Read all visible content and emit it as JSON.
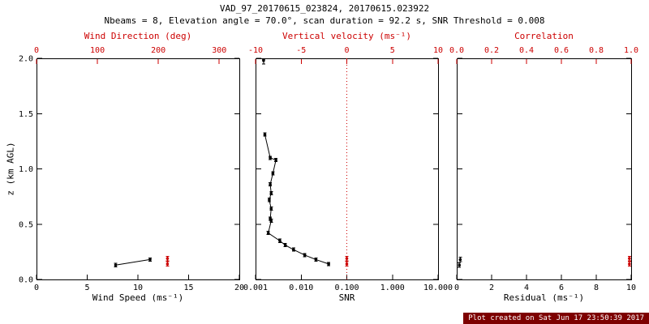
{
  "header": {
    "title": "VAD_97_20170615_023824, 20170615.023922",
    "subtitle": "Nbeams = 8, Elevation angle = 70.0°, scan duration = 92.2 s, SNR Threshold = 0.008"
  },
  "footer": {
    "created": "Plot created on Sat Jun 17 23:50:39 2017"
  },
  "colors": {
    "accent_red": "#cc0000",
    "black": "#000000",
    "footer_bg": "#7d0000"
  },
  "chart_data": [
    {
      "type": "scatter",
      "name": "wind-panel",
      "y_axis": {
        "label": "z (km AGL)",
        "range": [
          0,
          2
        ],
        "ticks": [
          0,
          0.5,
          1,
          1.5,
          2
        ],
        "tick_labels": [
          "0.0",
          "0.5",
          "1.0",
          "1.5",
          "2.0"
        ],
        "show_labels": true
      },
      "bottom_axis": {
        "label": "Wind Speed (ms⁻¹)",
        "range": [
          0,
          20
        ],
        "ticks": [
          0,
          5,
          10,
          15,
          20
        ],
        "tick_labels": [
          "0",
          "5",
          "10",
          "15",
          "20"
        ]
      },
      "top_axis": {
        "label": "Wind Direction (deg)",
        "range": [
          0,
          333
        ],
        "ticks": [
          0,
          100,
          200,
          300
        ],
        "tick_labels": [
          "0",
          "100",
          "200",
          "300"
        ]
      },
      "series": [
        {
          "name": "wind-speed",
          "color": "#000000",
          "line": true,
          "yerr": 0.015,
          "points": [
            [
              7.8,
              0.13
            ],
            [
              11.2,
              0.18
            ]
          ]
        },
        {
          "name": "wind-direction",
          "color": "#cc0000",
          "axis": "top",
          "line": false,
          "yerr": 0.02,
          "points": [
            [
              215,
              0.14
            ],
            [
              215,
              0.19
            ]
          ]
        }
      ]
    },
    {
      "type": "scatter",
      "name": "snr-panel",
      "y_axis": {
        "range": [
          0,
          2
        ],
        "ticks": [
          0,
          0.5,
          1,
          1.5,
          2
        ],
        "show_labels": false
      },
      "bottom_axis": {
        "label": "SNR",
        "range": [
          0.001,
          10
        ],
        "scale": "log",
        "ticks": [
          0.001,
          0.01,
          0.1,
          1,
          10
        ],
        "tick_labels": [
          "0.001",
          "0.010",
          "0.100",
          "1.000",
          "10.000"
        ]
      },
      "top_axis": {
        "label": "Vertical velocity (ms⁻¹)",
        "range": [
          -10,
          10
        ],
        "ticks": [
          -10,
          -5,
          0,
          5,
          10
        ],
        "tick_labels": [
          "-10",
          "-5",
          "0",
          "5",
          "10"
        ]
      },
      "ref_line": {
        "axis": "top",
        "value": 0,
        "color": "#cc0000",
        "dash": "1,3"
      },
      "series": [
        {
          "name": "snr-profile",
          "color": "#000000",
          "line": true,
          "yerr": 0.015,
          "points": [
            [
              0.0016,
              1.31
            ],
            [
              0.0021,
              1.1
            ],
            [
              0.0028,
              1.08
            ],
            [
              0.0024,
              0.96
            ],
            [
              0.0021,
              0.86
            ],
            [
              0.0022,
              0.78
            ],
            [
              0.002,
              0.72
            ],
            [
              0.0022,
              0.64
            ],
            [
              0.0021,
              0.55
            ],
            [
              0.0022,
              0.53
            ],
            [
              0.0019,
              0.42
            ],
            [
              0.0034,
              0.35
            ],
            [
              0.0045,
              0.31
            ],
            [
              0.0068,
              0.27
            ],
            [
              0.012,
              0.22
            ],
            [
              0.021,
              0.18
            ],
            [
              0.04,
              0.14
            ]
          ]
        },
        {
          "name": "snr-top-point",
          "color": "#000000",
          "line": false,
          "yerr": 0.03,
          "points": [
            [
              0.0015,
              1.98
            ]
          ]
        },
        {
          "name": "vertical-velocity",
          "color": "#cc0000",
          "axis": "top",
          "line": false,
          "yerr": 0.02,
          "points": [
            [
              0,
              0.14
            ],
            [
              0,
              0.19
            ]
          ]
        }
      ]
    },
    {
      "type": "scatter",
      "name": "residual-panel",
      "y_axis": {
        "range": [
          0,
          2
        ],
        "ticks": [
          0,
          0.5,
          1,
          1.5,
          2
        ],
        "show_labels": false
      },
      "bottom_axis": {
        "label": "Residual (ms⁻¹)",
        "range": [
          0,
          10
        ],
        "ticks": [
          0,
          2,
          4,
          6,
          8,
          10
        ],
        "tick_labels": [
          "0",
          "2",
          "4",
          "6",
          "8",
          "10"
        ]
      },
      "top_axis": {
        "label": "Correlation",
        "range": [
          0,
          1
        ],
        "ticks": [
          0,
          0.2,
          0.4,
          0.6,
          0.8,
          1
        ],
        "tick_labels": [
          "0.0",
          "0.2",
          "0.4",
          "0.6",
          "0.8",
          "1.0"
        ]
      },
      "series": [
        {
          "name": "residual",
          "color": "#000000",
          "line": false,
          "yerr": 0.02,
          "points": [
            [
              0.15,
              0.13
            ],
            [
              0.2,
              0.18
            ]
          ]
        },
        {
          "name": "correlation",
          "color": "#cc0000",
          "axis": "top",
          "line": false,
          "yerr": 0.02,
          "points": [
            [
              0.99,
              0.14
            ],
            [
              0.99,
              0.19
            ]
          ]
        }
      ]
    }
  ]
}
